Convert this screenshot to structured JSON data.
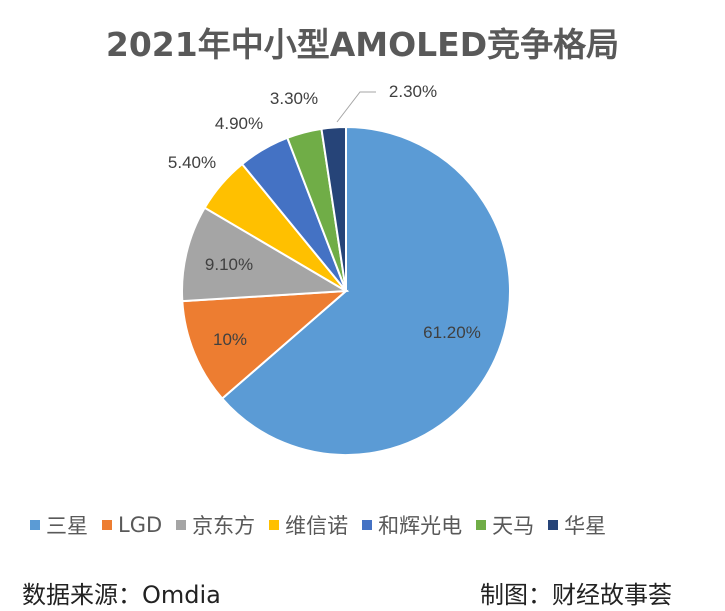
{
  "chart_data": {
    "type": "pie",
    "title": "2021年中小型AMOLED竞争格局",
    "start": "12 o'clock, clockwise",
    "legend_position": "bottom",
    "slices": [
      {
        "name": "三星",
        "value": 61.2,
        "label": "61.20%",
        "color": "#5B9BD5"
      },
      {
        "name": "LGD",
        "value": 10,
        "label": "10%",
        "color": "#ED7D31"
      },
      {
        "name": "京东方",
        "value": 9.1,
        "label": "9.10%",
        "color": "#A5A5A5"
      },
      {
        "name": "维信诺",
        "value": 5.4,
        "label": "5.40%",
        "color": "#FFC000"
      },
      {
        "name": "和辉光电",
        "value": 4.9,
        "label": "4.90%",
        "color": "#4472C4"
      },
      {
        "name": "天马",
        "value": 3.3,
        "label": "3.30%",
        "color": "#70AD47"
      },
      {
        "name": "华星",
        "value": 2.3,
        "label": "2.30%",
        "color": "#264478"
      }
    ]
  },
  "footer": {
    "source": "数据来源：Omdia",
    "credit": "制图：财经故事荟"
  }
}
